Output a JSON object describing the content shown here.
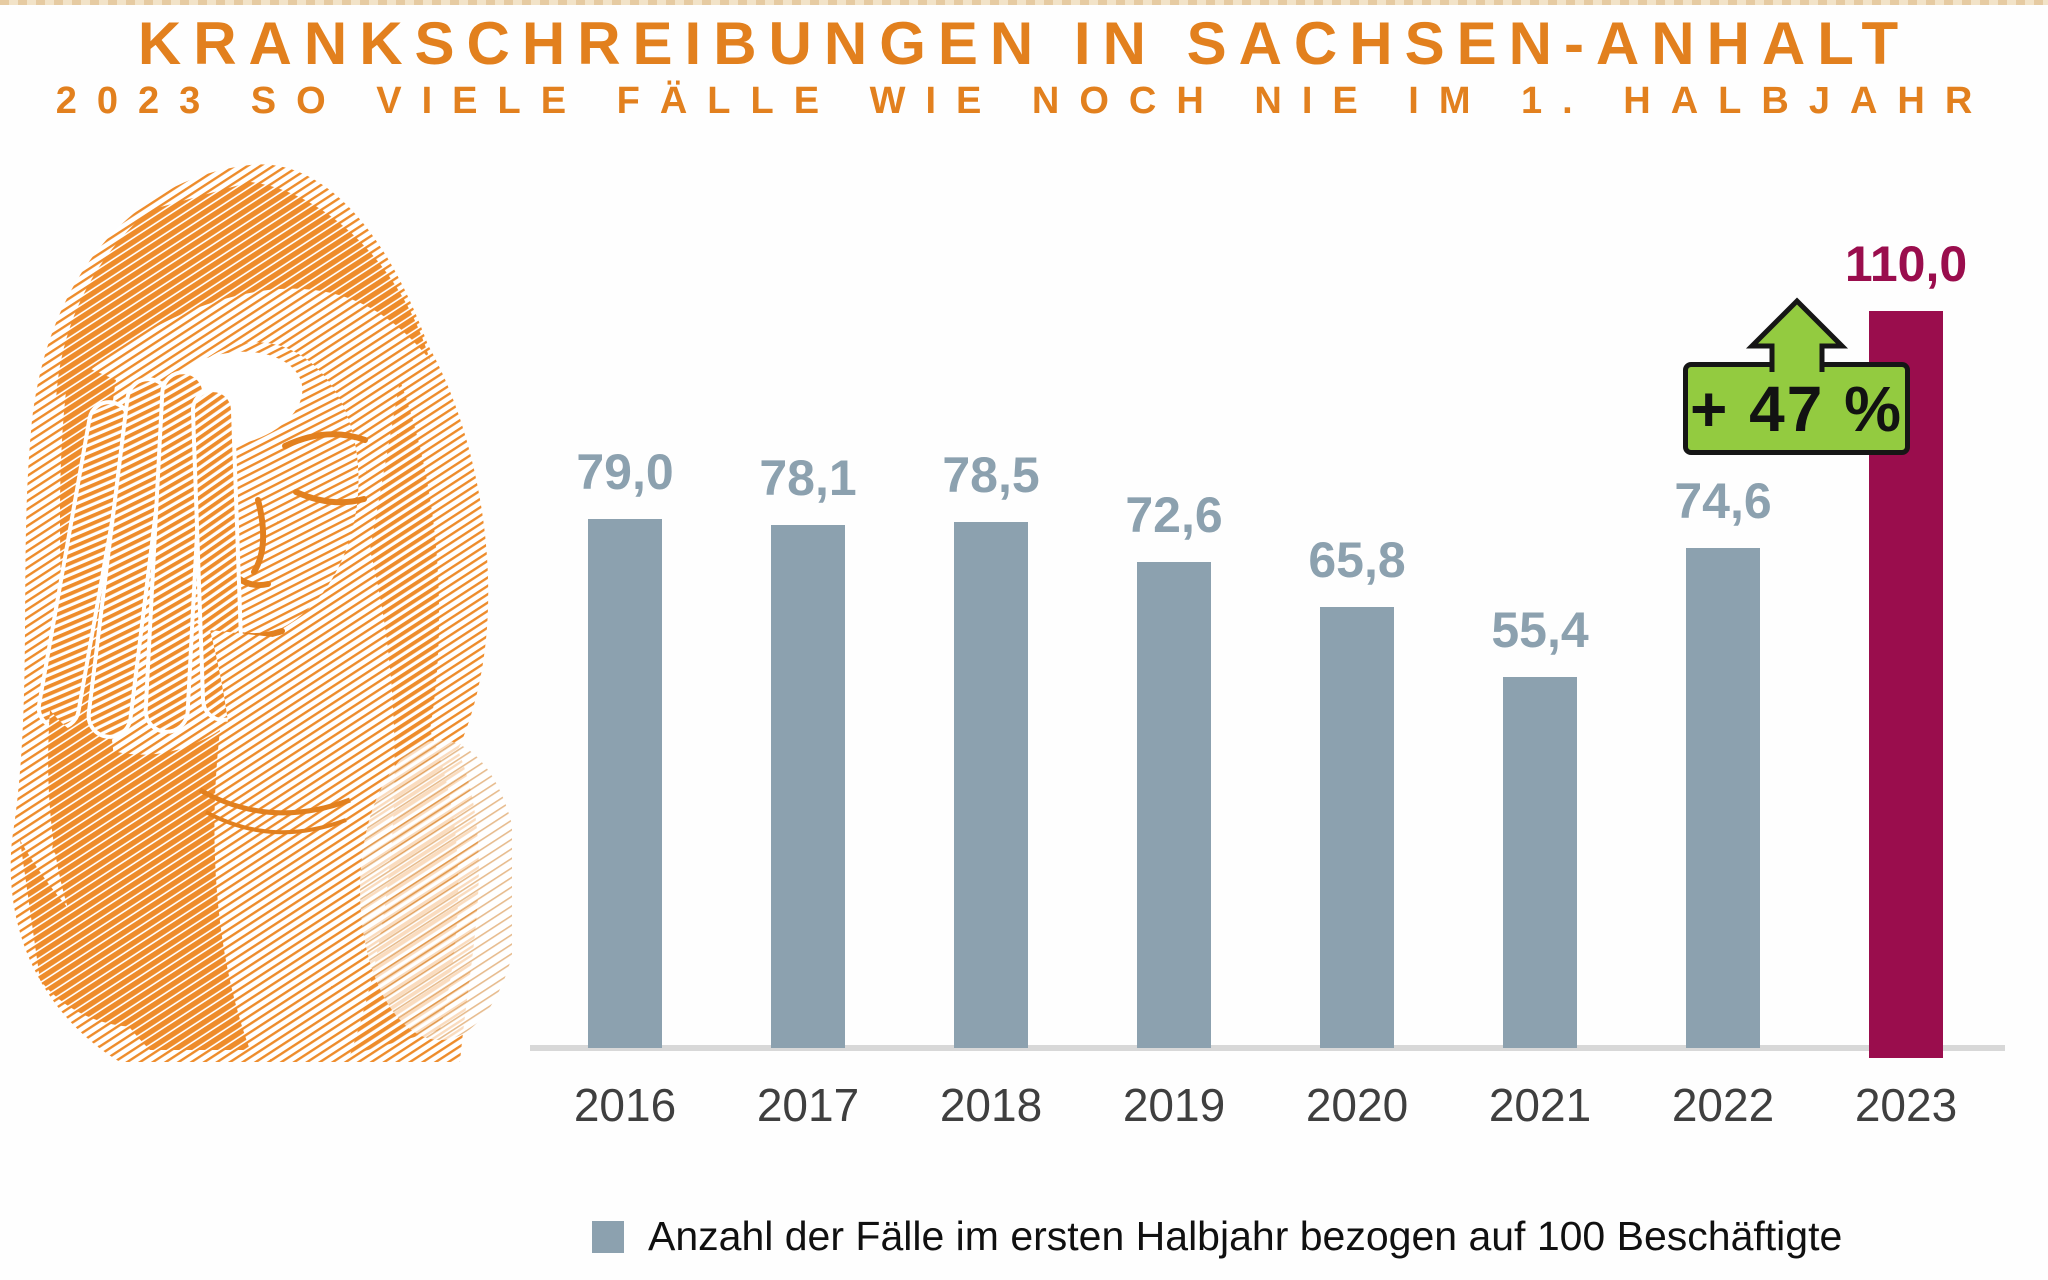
{
  "page": {
    "title": "KRANKSCHREIBUNGEN IN SACHSEN-ANHALT",
    "subtitle": "2023 SO VIELE FÄLLE WIE NOCH NIE IM 1. HALBJAHR"
  },
  "colors": {
    "accent_orange": "#e2801e",
    "illustration_orange": "#ee8c2b",
    "bar_gray_blue": "#8ca1af",
    "bar_highlight_maroon": "#9a0d4d",
    "badge_green": "#93cb40",
    "badge_border": "#161616",
    "axis_gray": "#d8d8d8",
    "year_label_gray": "#3f3f3f",
    "legend_text_black": "#101010"
  },
  "illustration": {
    "name": "woman-headache-halftone-illustration"
  },
  "chart_data": {
    "type": "bar",
    "categories": [
      "2016",
      "2017",
      "2018",
      "2019",
      "2020",
      "2021",
      "2022",
      "2023"
    ],
    "values": [
      79.0,
      78.1,
      78.5,
      72.6,
      65.8,
      55.4,
      74.6,
      110.0
    ],
    "value_labels": [
      "79,0",
      "78,1",
      "78,5",
      "72,6",
      "65,8",
      "55,4",
      "74,6",
      "110,0"
    ],
    "highlight_index": 7,
    "annotation": {
      "label": "+ 47 %"
    },
    "legend": "Anzahl der Fälle im ersten Halbjahr bezogen auf 100 Beschäftigte",
    "title": "KRANKSCHREIBUNGEN IN SACHSEN-ANHALT",
    "subtitle": "2023 SO VIELE FÄLLE WIE NOCH NIE IM 1. HALBJAHR",
    "xlabel": "",
    "ylabel": "",
    "ylim": [
      0,
      115
    ],
    "grid": false,
    "legend_position": "bottom"
  }
}
